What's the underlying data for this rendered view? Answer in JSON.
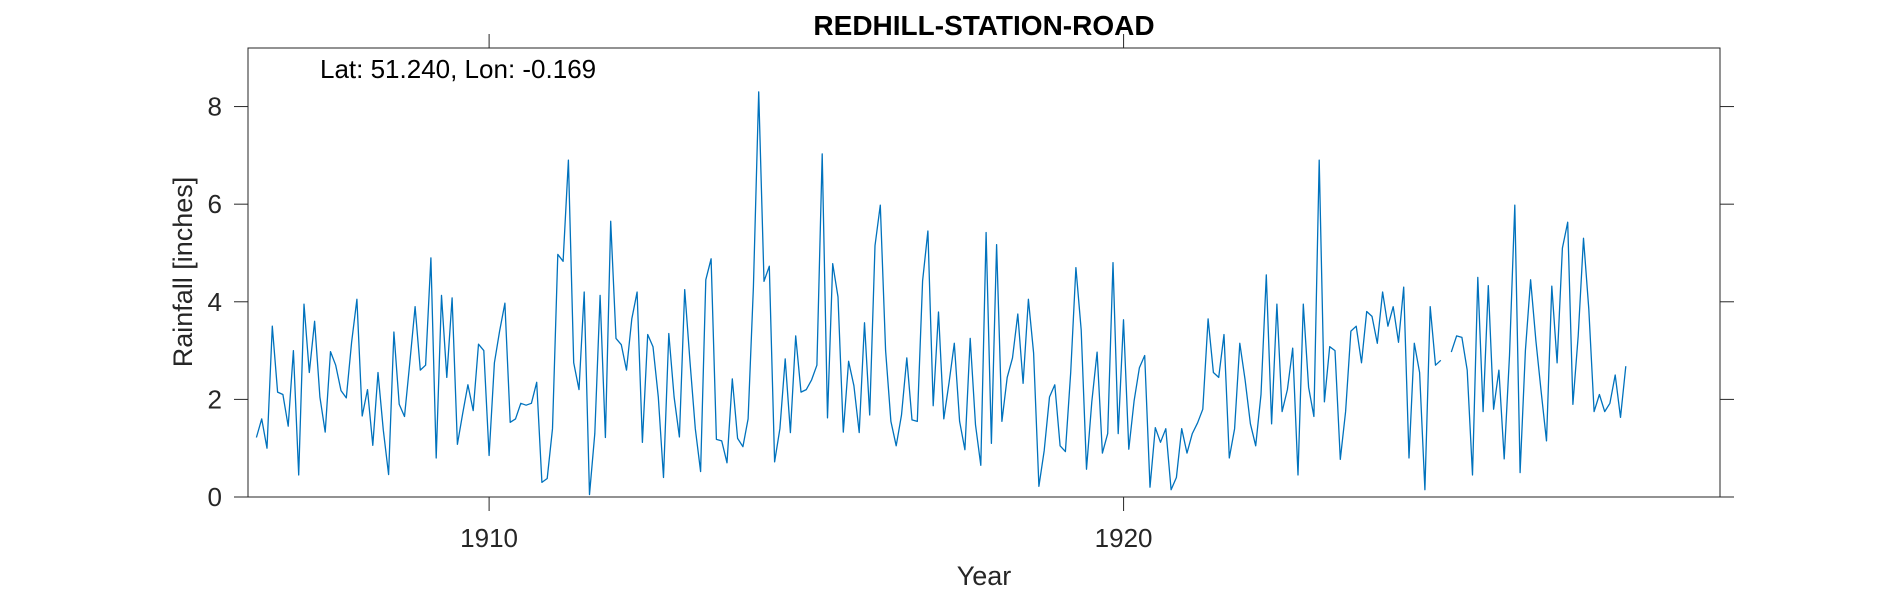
{
  "chart_data": {
    "type": "line",
    "title": "REDHILL-STATION-ROAD",
    "annotation": "Lat: 51.240, Lon: -0.169",
    "xlabel": "Year",
    "ylabel": "Rainfall [inches]",
    "xlim": [
      1906.2,
      1929.4
    ],
    "ylim": [
      0,
      9.2
    ],
    "xticks": [
      1910,
      1920
    ],
    "yticks": [
      0,
      2,
      4,
      6,
      8
    ],
    "grid": false,
    "line_color": "#0072BD",
    "series": [
      {
        "x_start": 1906.333,
        "x_step": 0.08333,
        "values": [
          1.22,
          1.6,
          1.0,
          3.5,
          2.15,
          2.1,
          1.45,
          3.0,
          0.45,
          3.95,
          2.55,
          3.6,
          2.05,
          1.33,
          2.98,
          2.7,
          2.18,
          2.03,
          3.17,
          4.05,
          1.66,
          2.2,
          1.06,
          2.55,
          1.37,
          0.46,
          3.38,
          1.9,
          1.65,
          2.75,
          3.9,
          2.6,
          2.7,
          4.9,
          0.8,
          4.13,
          2.45,
          4.08,
          1.08,
          1.7,
          2.3,
          1.77,
          3.13,
          3.0,
          0.85,
          2.75,
          3.4,
          3.97,
          1.53,
          1.6,
          1.92,
          1.88,
          1.92,
          2.35,
          0.3,
          0.38,
          1.4,
          4.97,
          4.83,
          6.9,
          2.75,
          2.2,
          4.2,
          0.05,
          1.3,
          4.13,
          1.22,
          5.65,
          3.25,
          3.12,
          2.6,
          3.65,
          4.2,
          1.12,
          3.33,
          3.08,
          2.05,
          0.4,
          3.35,
          2.05,
          1.23,
          4.25,
          2.77,
          1.4,
          0.52,
          4.45,
          4.88,
          1.18,
          1.15,
          0.7,
          2.42,
          1.2,
          1.03,
          1.6,
          4.3,
          8.3,
          4.42,
          4.73,
          0.72,
          1.4,
          2.83,
          1.32,
          3.3,
          2.15,
          2.2,
          2.4,
          2.7,
          7.03,
          1.62,
          4.78,
          4.1,
          1.33,
          2.78,
          2.28,
          1.32,
          3.57,
          1.68,
          5.15,
          5.98,
          3.0,
          1.55,
          1.05,
          1.68,
          2.85,
          1.58,
          1.55,
          4.43,
          5.45,
          1.87,
          3.79,
          1.6,
          2.35,
          3.15,
          1.55,
          0.97,
          3.25,
          1.48,
          0.65,
          5.42,
          1.1,
          5.17,
          1.55,
          2.45,
          2.85,
          3.75,
          2.33,
          4.05,
          2.95,
          0.22,
          0.95,
          2.05,
          2.3,
          1.05,
          0.93,
          2.55,
          4.7,
          3.42,
          0.57,
          1.95,
          2.97,
          0.9,
          1.3,
          4.8,
          1.3,
          3.63,
          0.98,
          1.97,
          2.65,
          2.9,
          0.2,
          1.42,
          1.12,
          1.4,
          0.15,
          0.4,
          1.4,
          0.9,
          1.3,
          1.52,
          1.8,
          3.65,
          2.55,
          2.45,
          3.33,
          0.8,
          1.4,
          3.15,
          2.4,
          1.5,
          1.05,
          2.1,
          4.55,
          1.5,
          3.95,
          1.75,
          2.2,
          3.05,
          0.45,
          3.95,
          2.25,
          1.65,
          6.9,
          1.95,
          3.08,
          3.0,
          0.77,
          1.75,
          3.4,
          3.5,
          2.75,
          3.8,
          3.7,
          3.15,
          4.2,
          3.5,
          3.9,
          3.17,
          4.3,
          0.8,
          3.15,
          2.55,
          0.15,
          3.9,
          2.7,
          2.8,
          null,
          2.97,
          3.3,
          3.27,
          2.6,
          0.45,
          4.5,
          1.75,
          4.33,
          1.8,
          2.6,
          0.78,
          2.9,
          5.98,
          0.5,
          3.0,
          4.45,
          3.2,
          2.15,
          1.15,
          4.32,
          2.75,
          5.1,
          5.63,
          1.9,
          3.3,
          5.3,
          3.85,
          1.75,
          2.1,
          1.75,
          1.92,
          2.5,
          1.63,
          2.68
        ]
      }
    ]
  }
}
